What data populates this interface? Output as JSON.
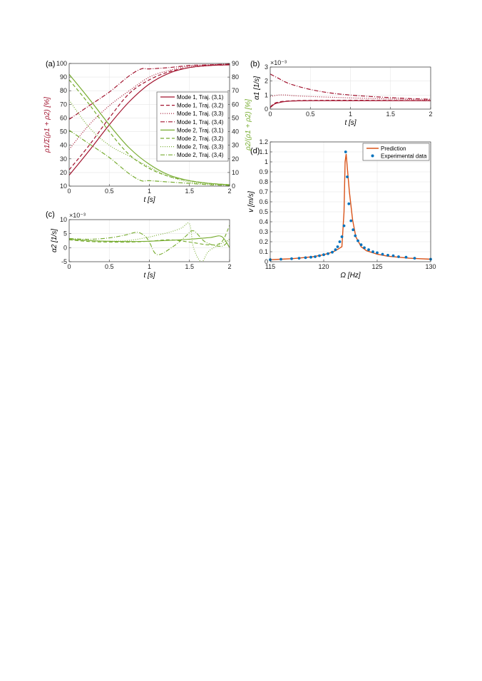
{
  "colors": {
    "mode1": "#a2142f",
    "mode2": "#77ac30",
    "prediction": "#d95319",
    "experimental": "#0072bd"
  },
  "panel_labels": {
    "a": "(a)",
    "b": "(b)",
    "c": "(c)",
    "d": "(d)"
  },
  "chart_data": [
    {
      "id": "a",
      "type": "line",
      "xlabel": "t [s]",
      "ylabel_left": "ρ1/Σ(ρ1 + ρ2) [%]",
      "ylabel_right": "ρ2/(ρ1 + ρ2) [%]",
      "xlim": [
        0,
        2
      ],
      "ylim_left": [
        10,
        100
      ],
      "ylim_right": [
        0,
        90
      ],
      "xticks": [
        "0",
        "0.5",
        "1",
        "1.5",
        "2"
      ],
      "yticks_left": [
        "10",
        "20",
        "30",
        "40",
        "50",
        "60",
        "70",
        "80",
        "90",
        "100"
      ],
      "yticks_right": [
        "0",
        "10",
        "20",
        "30",
        "40",
        "50",
        "60",
        "70",
        "80",
        "90"
      ],
      "grid": true,
      "legend_position": "right",
      "series": [
        {
          "name": "Mode 1, Traj. (3,1)",
          "axis": "left",
          "mode": 1,
          "style": "solid",
          "x": [
            0,
            0.25,
            0.5,
            0.75,
            1.0,
            1.25,
            1.5,
            1.75,
            2.0
          ],
          "y": [
            18,
            36,
            55,
            72,
            85,
            93,
            97,
            98.5,
            99
          ]
        },
        {
          "name": "Mode 1, Traj. (3,2)",
          "axis": "left",
          "mode": 1,
          "style": "dash",
          "x": [
            0,
            0.25,
            0.5,
            0.75,
            1.0,
            1.25,
            1.5,
            1.75,
            2.0
          ],
          "y": [
            22,
            40,
            60,
            78,
            88,
            94,
            97,
            98.5,
            99
          ]
        },
        {
          "name": "Mode 1, Traj. (3,3)",
          "axis": "left",
          "mode": 1,
          "style": "dot",
          "x": [
            0,
            0.25,
            0.5,
            0.75,
            1.0,
            1.25,
            1.5,
            1.75,
            2.0
          ],
          "y": [
            37,
            55,
            69,
            80,
            90,
            95,
            98,
            99,
            99.5
          ]
        },
        {
          "name": "Mode 1, Traj. (3,4)",
          "axis": "left",
          "mode": 1,
          "style": "dashdot",
          "x": [
            0,
            0.25,
            0.5,
            0.75,
            0.9,
            1.0,
            1.25,
            1.5,
            1.75,
            2.0
          ],
          "y": [
            59,
            69,
            79,
            91,
            96,
            96,
            97,
            98.5,
            99,
            99.5
          ]
        },
        {
          "name": "Mode 2, Traj. (3,1)",
          "axis": "right",
          "mode": 2,
          "style": "solid",
          "x": [
            0,
            0.25,
            0.5,
            0.75,
            1.0,
            1.25,
            1.5,
            1.75,
            2.0
          ],
          "y": [
            82,
            64,
            45,
            28,
            16,
            8,
            4,
            2,
            1
          ]
        },
        {
          "name": "Mode 2, Traj. (3,2)",
          "axis": "right",
          "mode": 2,
          "style": "dash",
          "x": [
            0,
            0.25,
            0.5,
            0.75,
            1.0,
            1.25,
            1.5,
            1.75,
            2.0
          ],
          "y": [
            78,
            60,
            40,
            23,
            13,
            7,
            4,
            2,
            1
          ]
        },
        {
          "name": "Mode 2, Traj. (3,3)",
          "axis": "right",
          "mode": 2,
          "style": "dot",
          "x": [
            0,
            0.25,
            0.5,
            0.75,
            1.0,
            1.25,
            1.5,
            1.75,
            2.0
          ],
          "y": [
            63,
            43,
            30,
            22,
            14,
            7,
            3,
            1.5,
            1
          ]
        },
        {
          "name": "Mode 2, Traj. (3,4)",
          "axis": "right",
          "mode": 2,
          "style": "dashdot",
          "x": [
            0,
            0.25,
            0.5,
            0.75,
            0.9,
            1.0,
            1.25,
            1.5,
            1.75,
            2.0
          ],
          "y": [
            41,
            31,
            21,
            9,
            4,
            4,
            3,
            2,
            1,
            0.5
          ]
        }
      ]
    },
    {
      "id": "b",
      "type": "line",
      "xlabel": "t [s]",
      "ylabel": "α1 [1/s]",
      "exponent": "×10⁻³",
      "xlim": [
        0,
        2
      ],
      "ylim": [
        0,
        3
      ],
      "xticks": [
        "0",
        "0.5",
        "1",
        "1.5",
        "2"
      ],
      "yticks": [
        "0",
        "1",
        "2",
        "3"
      ],
      "grid": true,
      "series": [
        {
          "mode": 1,
          "style": "solid",
          "x": [
            0,
            0.05,
            0.1,
            0.2,
            0.3,
            0.5,
            1.0,
            1.5,
            2.0
          ],
          "y": [
            0.1,
            0.35,
            0.45,
            0.55,
            0.58,
            0.6,
            0.6,
            0.6,
            0.6
          ]
        },
        {
          "mode": 1,
          "style": "dash",
          "x": [
            0,
            0.05,
            0.1,
            0.2,
            0.3,
            0.5,
            1.0,
            1.5,
            2.0
          ],
          "y": [
            0.15,
            0.4,
            0.5,
            0.57,
            0.6,
            0.62,
            0.63,
            0.62,
            0.6
          ]
        },
        {
          "mode": 1,
          "style": "dot",
          "x": [
            0,
            0.1,
            0.2,
            0.3,
            0.5,
            0.75,
            1.0,
            1.5,
            2.0
          ],
          "y": [
            0.9,
            1.0,
            1.0,
            0.95,
            0.9,
            0.85,
            0.8,
            0.72,
            0.65
          ]
        },
        {
          "mode": 1,
          "style": "dashdot",
          "x": [
            0,
            0.1,
            0.2,
            0.3,
            0.5,
            0.75,
            1.0,
            1.25,
            1.5,
            1.75,
            2.0
          ],
          "y": [
            2.5,
            2.2,
            1.9,
            1.7,
            1.4,
            1.15,
            1.0,
            0.9,
            0.82,
            0.75,
            0.7
          ]
        }
      ]
    },
    {
      "id": "c",
      "type": "line",
      "xlabel": "t [s]",
      "ylabel": "α2 [1/s]",
      "exponent": "×10⁻³",
      "xlim": [
        0,
        2
      ],
      "ylim": [
        -5,
        10
      ],
      "xticks": [
        "0",
        "0.5",
        "1",
        "1.5",
        "2"
      ],
      "yticks": [
        "-5",
        "0",
        "5",
        "10"
      ],
      "grid": true,
      "series": [
        {
          "mode": 2,
          "style": "solid",
          "x": [
            0,
            0.25,
            0.5,
            0.75,
            1.0,
            1.25,
            1.5,
            1.75,
            1.9,
            2.0
          ],
          "y": [
            3.0,
            2.5,
            2.3,
            2.2,
            2.3,
            2.6,
            3.0,
            3.6,
            4.0,
            0.0
          ]
        },
        {
          "mode": 2,
          "style": "dash",
          "x": [
            0,
            0.25,
            0.5,
            0.75,
            1.0,
            1.25,
            1.5,
            1.75,
            1.9,
            2.0
          ],
          "y": [
            2.8,
            2.2,
            2.0,
            2.0,
            2.3,
            2.8,
            2.0,
            1.0,
            2.0,
            8.0
          ]
        },
        {
          "mode": 2,
          "style": "dot",
          "x": [
            0,
            0.25,
            0.5,
            0.75,
            1.0,
            1.1,
            1.25,
            1.4,
            1.5,
            1.55,
            1.65,
            1.75,
            2.0
          ],
          "y": [
            3.2,
            2.6,
            2.3,
            2.6,
            3.8,
            4.5,
            5.5,
            7.0,
            8.5,
            0.0,
            -5.0,
            -1.0,
            3.0
          ]
        },
        {
          "mode": 2,
          "style": "dashdot",
          "x": [
            0,
            0.25,
            0.5,
            0.7,
            0.85,
            0.95,
            1.0,
            1.1,
            1.3,
            1.45,
            1.55,
            1.7,
            1.9,
            2.0
          ],
          "y": [
            3.3,
            3.0,
            3.5,
            4.5,
            5.5,
            4.0,
            2.0,
            -2.5,
            0.5,
            4.0,
            6.0,
            2.0,
            0.5,
            3.0
          ]
        }
      ]
    },
    {
      "id": "d",
      "type": "line+scatter",
      "xlabel": "Ω [Hz]",
      "ylabel": "v [m/s]",
      "xlim": [
        115,
        130
      ],
      "ylim": [
        0,
        1.2
      ],
      "xticks": [
        "115",
        "120",
        "125",
        "130"
      ],
      "yticks": [
        "0",
        "0.1",
        "0.2",
        "0.3",
        "0.4",
        "0.5",
        "0.6",
        "0.7",
        "0.8",
        "0.9",
        "1",
        "1.1",
        "1.2"
      ],
      "grid": true,
      "legend_position": "top-right",
      "series": [
        {
          "name": "Prediction",
          "kind": "line",
          "x": [
            115,
            116,
            117,
            118,
            119,
            120,
            120.5,
            121,
            121.4,
            121.7,
            121.9,
            122.0,
            122.1,
            122.2,
            122.4,
            122.7,
            123,
            123.5,
            124,
            125,
            126,
            127,
            128,
            129,
            130
          ],
          "y": [
            0.02,
            0.025,
            0.03,
            0.04,
            0.05,
            0.07,
            0.085,
            0.105,
            0.13,
            0.15,
            0.5,
            1.0,
            1.08,
            0.95,
            0.7,
            0.42,
            0.25,
            0.15,
            0.11,
            0.075,
            0.055,
            0.045,
            0.035,
            0.03,
            0.025
          ]
        },
        {
          "name": "Experimental data",
          "kind": "scatter",
          "x": [
            115,
            116,
            117,
            117.7,
            118.3,
            118.8,
            119.2,
            119.6,
            120,
            120.4,
            120.8,
            121.1,
            121.3,
            121.5,
            121.7,
            121.9,
            122.05,
            122.2,
            122.35,
            122.55,
            122.75,
            122.95,
            123.2,
            123.5,
            123.8,
            124.2,
            124.6,
            125,
            125.5,
            126,
            126.5,
            127,
            127.7,
            128.5,
            130
          ],
          "y": [
            0.02,
            0.025,
            0.03,
            0.035,
            0.04,
            0.045,
            0.05,
            0.06,
            0.07,
            0.08,
            0.095,
            0.12,
            0.15,
            0.2,
            0.25,
            0.36,
            1.1,
            0.85,
            0.58,
            0.41,
            0.32,
            0.26,
            0.21,
            0.17,
            0.14,
            0.12,
            0.1,
            0.09,
            0.075,
            0.065,
            0.06,
            0.05,
            0.045,
            0.035,
            0.025
          ]
        }
      ]
    }
  ]
}
